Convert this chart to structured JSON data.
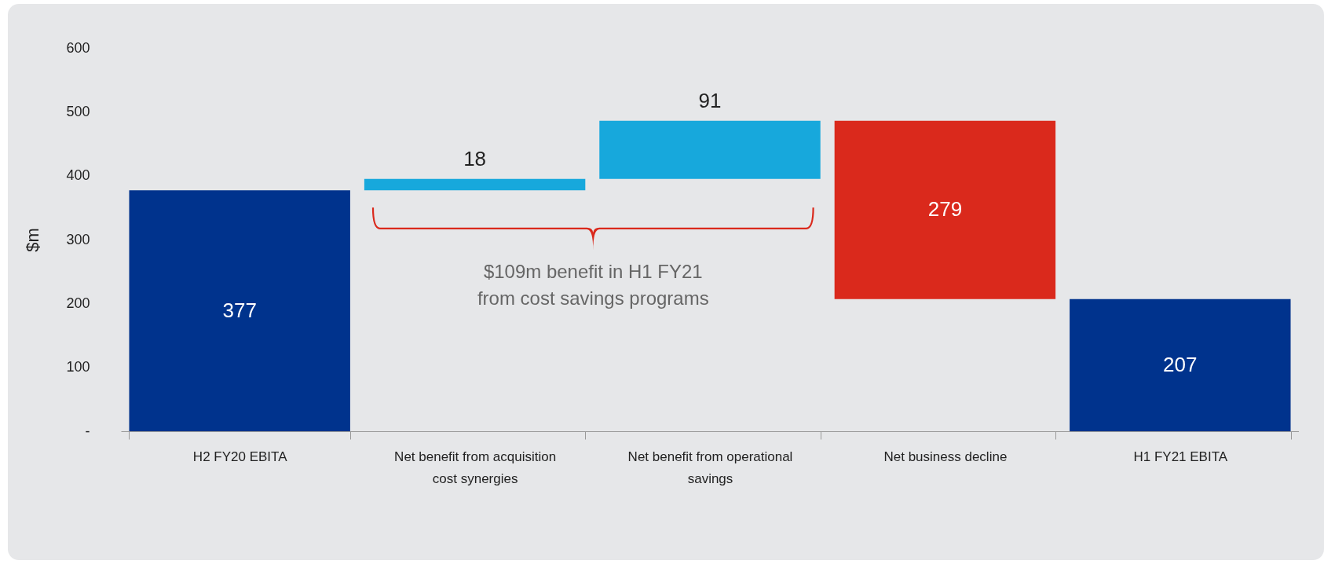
{
  "chart_data": {
    "type": "bar",
    "ylabel": "$m",
    "categories": [
      "H2 FY20 EBITA",
      "Net benefit from acquisition cost synergies",
      "Net benefit from operational savings",
      "Net business decline",
      "H1 FY21 EBITA"
    ],
    "base": [
      0,
      377,
      395,
      486,
      0
    ],
    "values": [
      377,
      18,
      91,
      -279,
      207
    ],
    "value_labels": [
      "377",
      "18",
      "91",
      "279",
      "207"
    ],
    "colors": [
      "#00338d",
      "#17a8dc",
      "#17a8dc",
      "#da291c",
      "#00338d"
    ],
    "ylim": [
      0,
      600
    ],
    "yticks": [
      {
        "value": 0,
        "label": "-"
      },
      100,
      200,
      300,
      400,
      500,
      600
    ],
    "annotations": [
      "$109m benefit in H1 FY21 from cost savings programs"
    ]
  }
}
